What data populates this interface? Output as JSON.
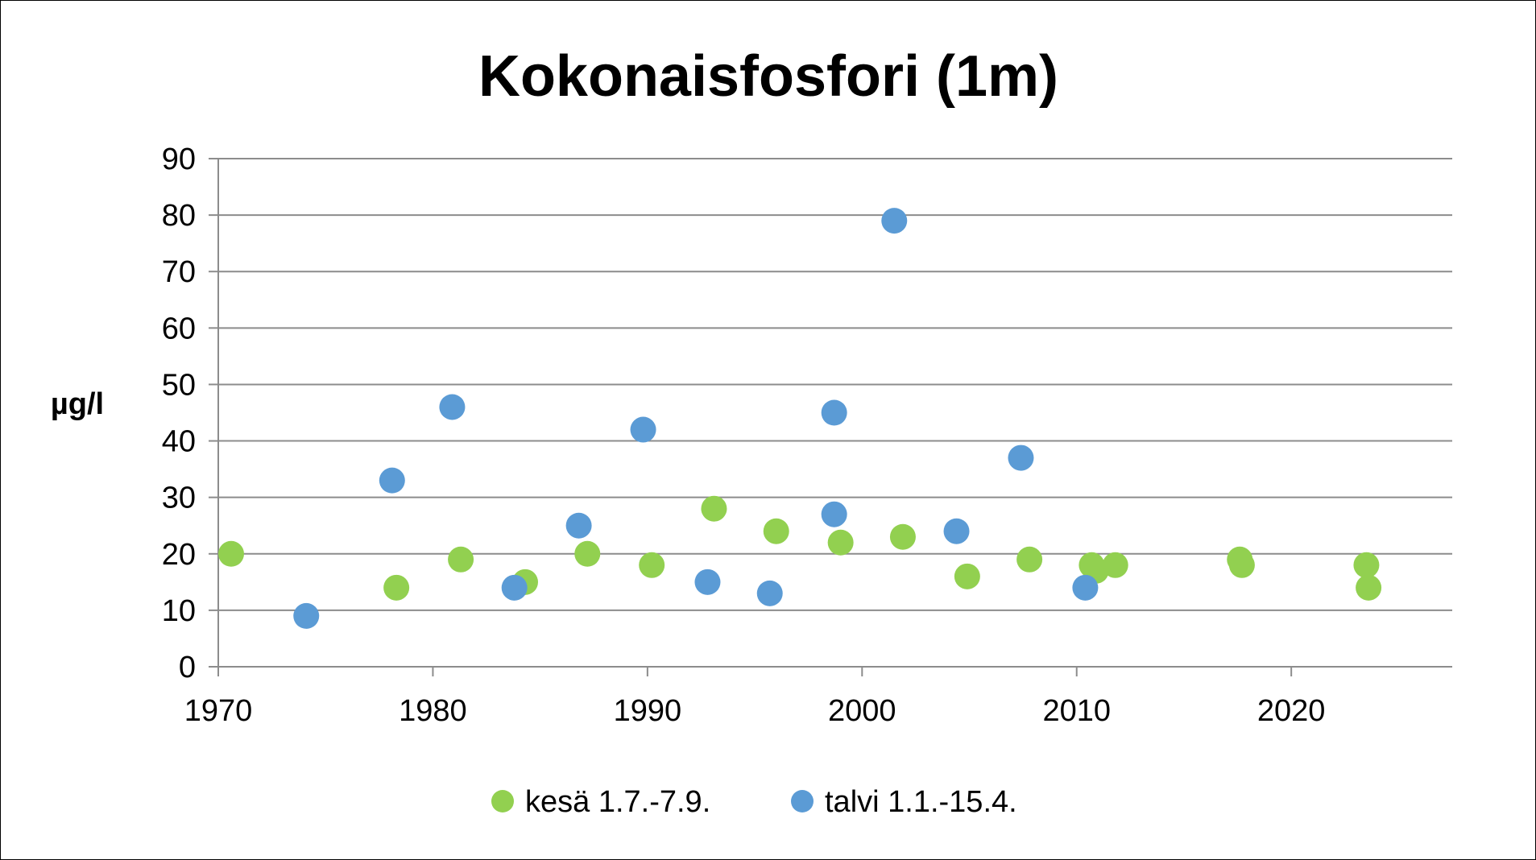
{
  "chart_data": {
    "type": "scatter",
    "title": "Kokonaisfosfori (1m)",
    "xlabel": "",
    "ylabel": "µg/l",
    "xlim": [
      1970,
      2027.5
    ],
    "ylim": [
      0,
      90
    ],
    "xticks": [
      1970,
      1980,
      1990,
      2000,
      2010,
      2020
    ],
    "yticks": [
      0,
      10,
      20,
      30,
      40,
      50,
      60,
      70,
      80,
      90
    ],
    "grid": true,
    "legend": "bottom",
    "series": [
      {
        "name": "kesä 1.7.-7.9.",
        "color": "#92d050",
        "points": [
          [
            1970.6,
            20
          ],
          [
            1978.3,
            14
          ],
          [
            1981.3,
            19
          ],
          [
            1984.3,
            15
          ],
          [
            1987.2,
            20
          ],
          [
            1990.2,
            18
          ],
          [
            1993.1,
            28
          ],
          [
            1996.0,
            24
          ],
          [
            1999.0,
            22
          ],
          [
            2001.9,
            23
          ],
          [
            2004.9,
            16
          ],
          [
            2007.8,
            19
          ],
          [
            2010.7,
            18
          ],
          [
            2010.9,
            17
          ],
          [
            2011.8,
            18
          ],
          [
            2017.6,
            19
          ],
          [
            2017.7,
            18
          ],
          [
            2023.5,
            18
          ],
          [
            2023.6,
            14
          ]
        ]
      },
      {
        "name": "talvi 1.1.-15.4.",
        "color": "#5b9bd5",
        "points": [
          [
            1974.1,
            9
          ],
          [
            1978.1,
            33
          ],
          [
            1980.9,
            46
          ],
          [
            1983.8,
            14
          ],
          [
            1986.8,
            25
          ],
          [
            1989.8,
            42
          ],
          [
            1992.8,
            15
          ],
          [
            1995.7,
            13
          ],
          [
            1998.7,
            45
          ],
          [
            1998.7,
            27
          ],
          [
            2001.5,
            79
          ],
          [
            2004.4,
            24
          ],
          [
            2007.4,
            37
          ],
          [
            2010.4,
            14
          ]
        ]
      }
    ]
  }
}
